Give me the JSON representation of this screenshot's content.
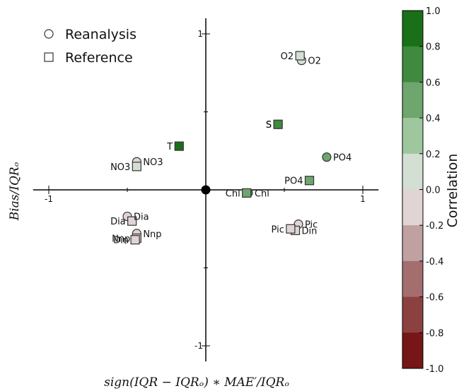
{
  "chart_data": {
    "type": "scatter",
    "xlabel": "sign(IQR − IQRₒ) ∗ MAE′/IQRₒ",
    "ylabel": "Bias/IQRₒ",
    "xlim": [
      -1.1,
      1.1
    ],
    "ylim": [
      -1.1,
      1.1
    ],
    "x_ticks": [
      {
        "value": -1,
        "label": "-1"
      },
      {
        "value": 1,
        "label": "1"
      }
    ],
    "y_ticks": [
      {
        "value": 1,
        "label": "1"
      },
      {
        "value": -1,
        "label": "-1"
      }
    ],
    "legend": {
      "position": "top-left",
      "entries": [
        {
          "marker": "circle",
          "label": "Reanalysis"
        },
        {
          "marker": "square",
          "label": "Reference"
        }
      ]
    },
    "colorbar": {
      "title": "Correlation",
      "range": [
        -1.0,
        1.0
      ],
      "tick_labels": [
        "1.0",
        "0.8",
        "0.6",
        "0.4",
        "0.2",
        "0.0",
        "-0.2",
        "-0.4",
        "-0.6",
        "-0.8",
        "-1.0"
      ],
      "bin_colors": [
        "#197019",
        "#3f8a3f",
        "#6ea66e",
        "#9ec79e",
        "#d3dfd3",
        "#e0d4d4",
        "#c0a0a0",
        "#a46e6e",
        "#8c4141",
        "#761616"
      ]
    },
    "reference_point": {
      "x": 0,
      "y": 0
    },
    "series": [
      {
        "name": "Reanalysis",
        "marker": "circle",
        "points": [
          {
            "label": "O2",
            "x": 0.61,
            "y": 0.83,
            "r": 0.2,
            "label_side": "right"
          },
          {
            "label": "S",
            "x": 0.46,
            "y": 0.42,
            "r": 0.7,
            "label_side": "left"
          },
          {
            "label": "PO4",
            "x": 0.77,
            "y": 0.21,
            "r": 0.5,
            "label_side": "right"
          },
          {
            "label": "NO3",
            "x": -0.44,
            "y": 0.18,
            "r": 0.0,
            "label_side": "right"
          },
          {
            "label": "Chl",
            "x": 0.27,
            "y": -0.02,
            "r": 0.7,
            "label_side": "right"
          },
          {
            "label": "Dia",
            "x": -0.5,
            "y": -0.17,
            "r": -0.1,
            "label_side": "right"
          },
          {
            "label": "Pic",
            "x": 0.59,
            "y": -0.22,
            "r": -0.05,
            "label_side": "right"
          },
          {
            "label": "Nnp",
            "x": -0.44,
            "y": -0.28,
            "r": -0.05,
            "label_side": "right"
          }
        ]
      },
      {
        "name": "Reference",
        "marker": "square",
        "points": [
          {
            "label": "O2",
            "x": 0.6,
            "y": 0.86,
            "r": 0.1,
            "label_side": "left"
          },
          {
            "label": "S",
            "x": 0.46,
            "y": 0.42,
            "r": 0.7,
            "label_side": "left"
          },
          {
            "label": "T",
            "x": -0.17,
            "y": 0.28,
            "r": 0.95,
            "label_side": "left"
          },
          {
            "label": "PO4",
            "x": 0.66,
            "y": 0.06,
            "r": 0.4,
            "label_side": "left"
          },
          {
            "label": "NO3",
            "x": -0.44,
            "y": 0.15,
            "r": 0.1,
            "label_side": "left"
          },
          {
            "label": "Chl",
            "x": 0.26,
            "y": -0.02,
            "r": 0.5,
            "label_side": "left"
          },
          {
            "label": "Dia",
            "x": -0.47,
            "y": -0.2,
            "r": -0.2,
            "label_side": "left"
          },
          {
            "label": "Din",
            "x": 0.57,
            "y": -0.26,
            "r": -0.05,
            "label_side": "right"
          },
          {
            "label": "Pic",
            "x": 0.54,
            "y": -0.25,
            "r": -0.1,
            "label_side": "left"
          },
          {
            "label": "Nnp",
            "x": -0.44,
            "y": -0.31,
            "r": -0.2,
            "label_side": "left"
          },
          {
            "label": "Din",
            "x": -0.45,
            "y": -0.32,
            "r": -0.1,
            "label_side": "left"
          }
        ]
      }
    ]
  }
}
